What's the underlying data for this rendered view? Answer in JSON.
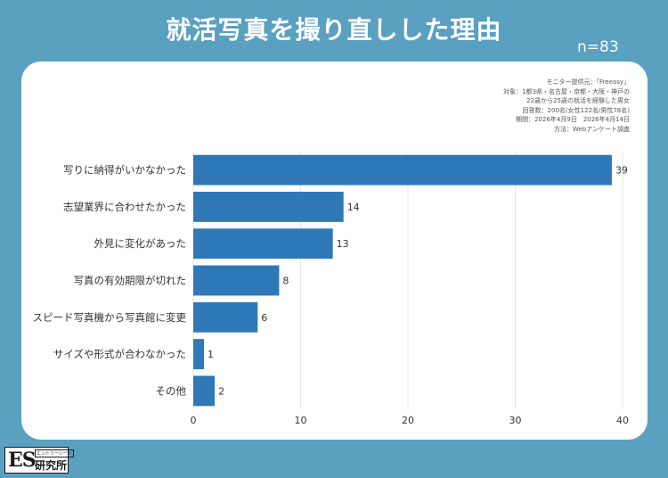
{
  "title": "就活写真を撮り直しした理由",
  "sample_size": "n=83",
  "source": {
    "lines": [
      "モニター提供元：「Freeasy」",
      "対象：1都3県・名古屋・京都・大阪・神戸の",
      "22歳から25歳の就活を経験した男女",
      "回答数：200名(女性122名/男性78名)",
      "期間：2026年4月9日　2026年4月14日",
      "方法：Webアンケート調査"
    ]
  },
  "logo": {
    "main": "ES",
    "tagline": "エントリーシート",
    "name": "研究所"
  },
  "colors": {
    "background": "#5aa0c0",
    "bar": "#2e78b8",
    "grid": "#e6e6e6"
  },
  "chart_data": {
    "type": "bar",
    "orientation": "horizontal",
    "categories": [
      "写りに納得がいかなかった",
      "志望業界に合わせたかった",
      "外見に変化があった",
      "写真の有効期限が切れた",
      "スピード写真機から写真館に変更",
      "サイズや形式が合わなかった",
      "その他"
    ],
    "values": [
      39,
      14,
      13,
      8,
      6,
      1,
      2
    ],
    "xlim": [
      0,
      40
    ],
    "xticks": [
      0,
      10,
      20,
      30,
      40
    ],
    "grid": true,
    "data_labels": true
  }
}
